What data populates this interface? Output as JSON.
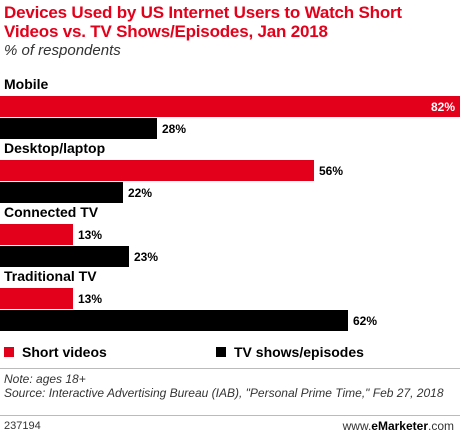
{
  "title": "Devices Used by US Internet Users to Watch Short Videos vs. TV Shows/Episodes, Jan 2018",
  "subtitle": "% of respondents",
  "chart_data": {
    "type": "bar",
    "orientation": "horizontal",
    "categories": [
      "Mobile",
      "Desktop/laptop",
      "Connected TV",
      "Traditional TV"
    ],
    "series": [
      {
        "name": "Short videos",
        "values": [
          82,
          56,
          13,
          13
        ],
        "labels": [
          "82%",
          "56%",
          "13%",
          "13%"
        ],
        "color": "#e3001b"
      },
      {
        "name": "TV shows/episodes",
        "values": [
          28,
          22,
          23,
          62
        ],
        "labels": [
          "28%",
          "22%",
          "23%",
          "62%"
        ],
        "color": "#000000"
      }
    ],
    "xlim": [
      0,
      82
    ],
    "grid": false,
    "legend": "bottom"
  },
  "note": "Note: ages 18+",
  "source": "Source: Interactive Advertising Bureau (IAB), \"Personal Prime Time,\" Feb 27, 2018",
  "footer": {
    "id": "237194",
    "brand_prefix": "www.",
    "brand_name": "eMarketer",
    "brand_suffix": ".com"
  }
}
